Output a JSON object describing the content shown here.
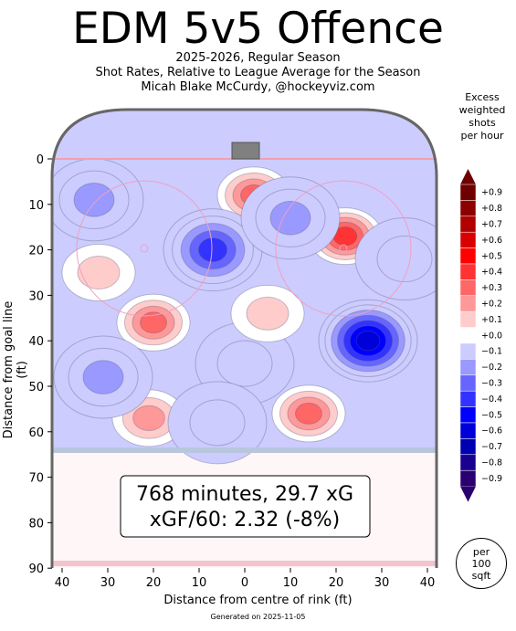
{
  "header": {
    "title": "EDM 5v5 Offence",
    "subtitle_lines": [
      "2025-2026, Regular Season",
      "Shot Rates, Relative to League Average for the Season",
      "Micah Blake McCurdy, @hockeyviz.com"
    ]
  },
  "summary": {
    "line1": "768 minutes, 29.7 xG",
    "line2": "xGF/60: 2.32 (-8%)"
  },
  "footer": "Generated on 2025-11-05",
  "per_box": [
    "per",
    "100",
    "sqft"
  ],
  "colorbar": {
    "title_lines": [
      "Excess",
      "weighted",
      "shots",
      "per hour"
    ],
    "levels": [
      {
        "label": "+0.9",
        "color": "#6e0000"
      },
      {
        "label": "+0.8",
        "color": "#8c0000"
      },
      {
        "label": "+0.7",
        "color": "#b00000"
      },
      {
        "label": "+0.6",
        "color": "#d80000"
      },
      {
        "label": "+0.5",
        "color": "#ff0000"
      },
      {
        "label": "+0.4",
        "color": "#ff3333"
      },
      {
        "label": "+0.3",
        "color": "#ff6666"
      },
      {
        "label": "+0.2",
        "color": "#ff9999"
      },
      {
        "label": "+0.1",
        "color": "#ffcccc"
      },
      {
        "label": "+0.0",
        "color": "#ffffff"
      },
      {
        "label": "−0.1",
        "color": "#ccccff"
      },
      {
        "label": "−0.2",
        "color": "#9999ff"
      },
      {
        "label": "−0.3",
        "color": "#6666ff"
      },
      {
        "label": "−0.4",
        "color": "#3333ff"
      },
      {
        "label": "−0.5",
        "color": "#0000ff"
      },
      {
        "label": "−0.6",
        "color": "#0000d8"
      },
      {
        "label": "−0.7",
        "color": "#0000b0"
      },
      {
        "label": "−0.8",
        "color": "#1a0090"
      },
      {
        "label": "−0.9",
        "color": "#2a0070"
      }
    ]
  },
  "chart_data": {
    "type": "heatmap",
    "title": "EDM 5v5 Offence",
    "xlabel": "Distance from centre of rink (ft)",
    "ylabel": "Distance from goal line (ft)",
    "xlim": [
      -42.5,
      42.5
    ],
    "ylim": [
      0,
      90
    ],
    "x_ticks": [
      -40,
      -30,
      -20,
      -10,
      0,
      10,
      20,
      30,
      40
    ],
    "x_tick_labels": [
      "40",
      "30",
      "20",
      "10",
      "0",
      "10",
      "20",
      "30",
      "40"
    ],
    "y_ticks": [
      0,
      10,
      20,
      30,
      40,
      50,
      60,
      70,
      80,
      90
    ],
    "y_tick_labels": [
      "0",
      "10",
      "20",
      "30",
      "40",
      "50",
      "60",
      "70",
      "80",
      "90"
    ],
    "colorbar_range": [
      -0.9,
      0.9
    ],
    "hotspots": [
      {
        "x": 2,
        "y": 8,
        "value": 0.3
      },
      {
        "x": 22,
        "y": 17,
        "value": 0.4
      },
      {
        "x": -20,
        "y": 36,
        "value": 0.3
      },
      {
        "x": -32,
        "y": 25,
        "value": 0.1
      },
      {
        "x": -21,
        "y": 57,
        "value": 0.2
      },
      {
        "x": 14,
        "y": 56,
        "value": 0.3
      },
      {
        "x": 27,
        "y": 40,
        "value": -0.6
      },
      {
        "x": -7,
        "y": 20,
        "value": -0.4
      },
      {
        "x": -33,
        "y": 9,
        "value": -0.2
      },
      {
        "x": 10,
        "y": 13,
        "value": -0.2
      },
      {
        "x": -31,
        "y": 48,
        "value": -0.2
      },
      {
        "x": 35,
        "y": 22,
        "value": -0.1
      },
      {
        "x": 0,
        "y": 45,
        "value": -0.1
      },
      {
        "x": 5,
        "y": 34,
        "value": 0.05
      },
      {
        "x": -6,
        "y": 58,
        "value": -0.1
      }
    ]
  }
}
